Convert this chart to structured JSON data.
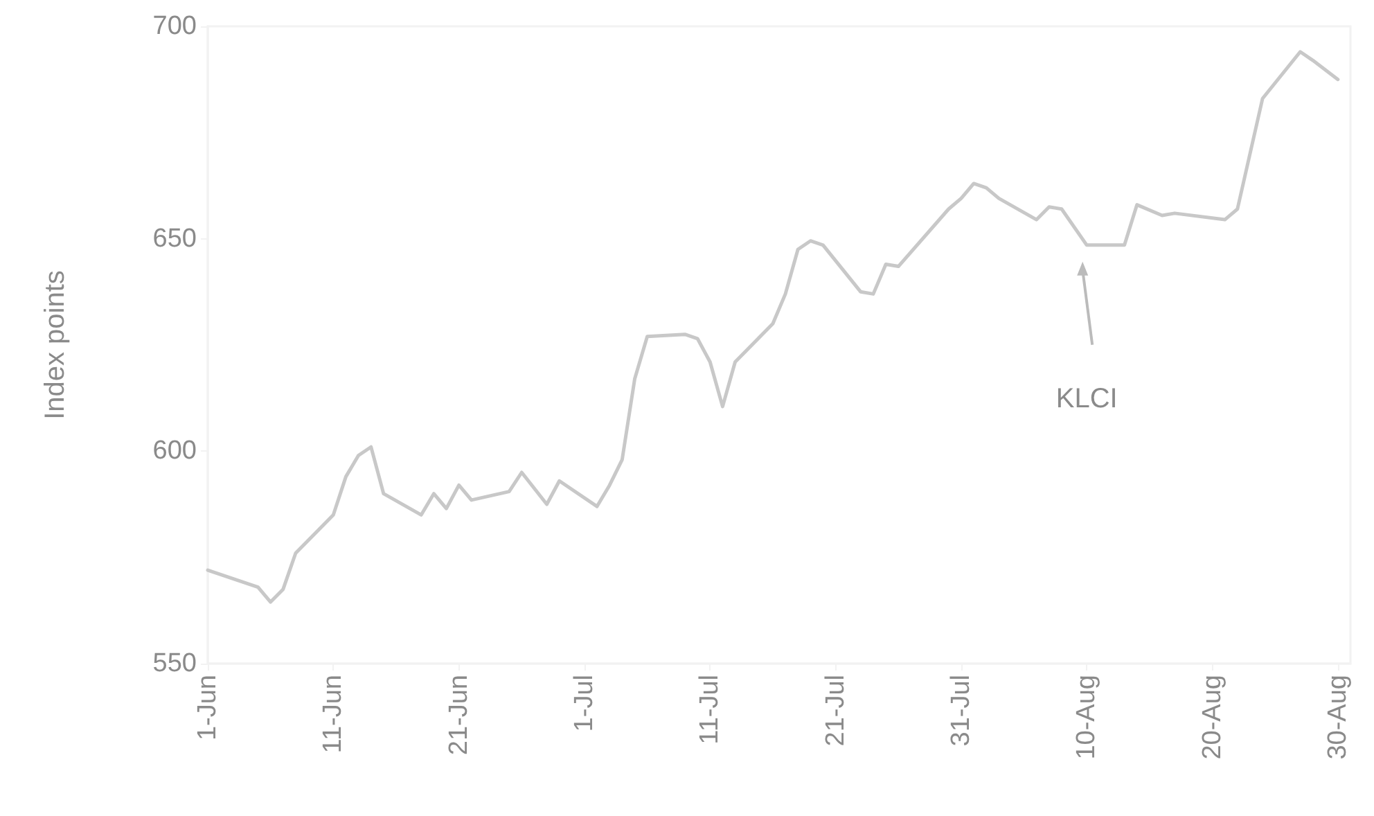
{
  "chart_data": {
    "type": "line",
    "ylabel": "Index points",
    "x": [
      "--06-01",
      "--06-05",
      "--06-06",
      "--06-07",
      "--06-08",
      "--06-11",
      "--06-12",
      "--06-13",
      "--06-14",
      "--06-15",
      "--06-18",
      "--06-19",
      "--06-20",
      "--06-21",
      "--06-22",
      "--06-25",
      "--06-26",
      "--06-28",
      "--06-29",
      "--07-02",
      "--07-03",
      "--07-04",
      "--07-05",
      "--07-06",
      "--07-09",
      "--07-10",
      "--07-11",
      "--07-12",
      "--07-13",
      "--07-16",
      "--07-17",
      "--07-18",
      "--07-19",
      "--07-20",
      "--07-23",
      "--07-24",
      "--07-25",
      "--07-26",
      "--07-30",
      "--07-31",
      "--08-01",
      "--08-02",
      "--08-03",
      "--08-06",
      "--08-07",
      "--08-08",
      "--08-10",
      "--08-13",
      "--08-14",
      "--08-16",
      "--08-17",
      "--08-21",
      "--08-22",
      "--08-24",
      "--08-27",
      "--08-28",
      "--08-30"
    ],
    "series": [
      {
        "name": "KLCI",
        "color": "#c8c8c8",
        "values": [
          572,
          568,
          564.5,
          567.5,
          576,
          585,
          594,
          599,
          601,
          590,
          585,
          590,
          586.5,
          592,
          588.5,
          590.5,
          595,
          587.5,
          593,
          587,
          592,
          598,
          617,
          627,
          627.5,
          626.5,
          621,
          610.5,
          621,
          630,
          637,
          647.5,
          649.5,
          648.5,
          637.5,
          637,
          644,
          643.5,
          657,
          659.5,
          663,
          662,
          659.5,
          654.5,
          657.5,
          657,
          648.5,
          648.5,
          658,
          655.5,
          656,
          654.5,
          657,
          683,
          694,
          692,
          687.5
        ]
      }
    ],
    "xlim": [
      "--06-01",
      "--08-31"
    ],
    "xticks": [
      {
        "value": "--06-01",
        "label": "1-Jun"
      },
      {
        "value": "--06-11",
        "label": "11-Jun"
      },
      {
        "value": "--06-21",
        "label": "21-Jun"
      },
      {
        "value": "--07-01",
        "label": "1-Jul"
      },
      {
        "value": "--07-11",
        "label": "11-Jul"
      },
      {
        "value": "--07-21",
        "label": "21-Jul"
      },
      {
        "value": "--07-31",
        "label": "31-Jul"
      },
      {
        "value": "--08-10",
        "label": "10-Aug"
      },
      {
        "value": "--08-20",
        "label": "20-Aug"
      },
      {
        "value": "--08-30",
        "label": "30-Aug"
      }
    ],
    "ylim": [
      550,
      700
    ],
    "yticks": [
      550,
      600,
      650,
      700
    ],
    "grid": false,
    "legend": false,
    "marker": "none",
    "line_style": "solid"
  }
}
